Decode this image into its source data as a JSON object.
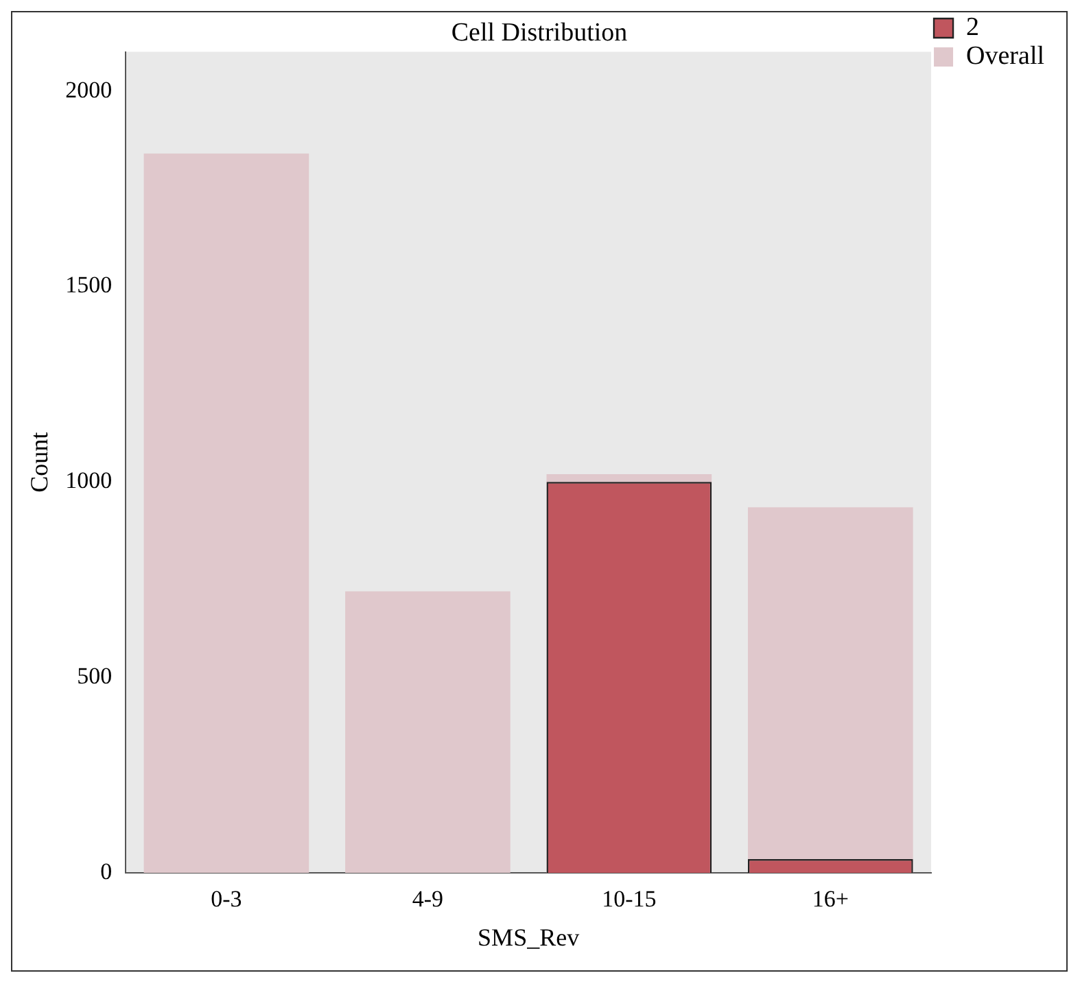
{
  "chart_data": {
    "type": "bar",
    "title": "Cell Distribution",
    "xlabel": "SMS_Rev",
    "ylabel": "Count",
    "categories": [
      "0-3",
      "4-9",
      "10-15",
      "16+"
    ],
    "series": [
      {
        "name": "Overall",
        "color": "#e0c8cc",
        "values": [
          1840,
          720,
          1020,
          935
        ]
      },
      {
        "name": "2",
        "color": "#c0565e",
        "values": [
          null,
          null,
          1000,
          35
        ]
      }
    ],
    "ylim": [
      0,
      2100
    ],
    "yticks": [
      0,
      500,
      1000,
      1500,
      2000
    ],
    "grid": false,
    "legend": "top right"
  }
}
